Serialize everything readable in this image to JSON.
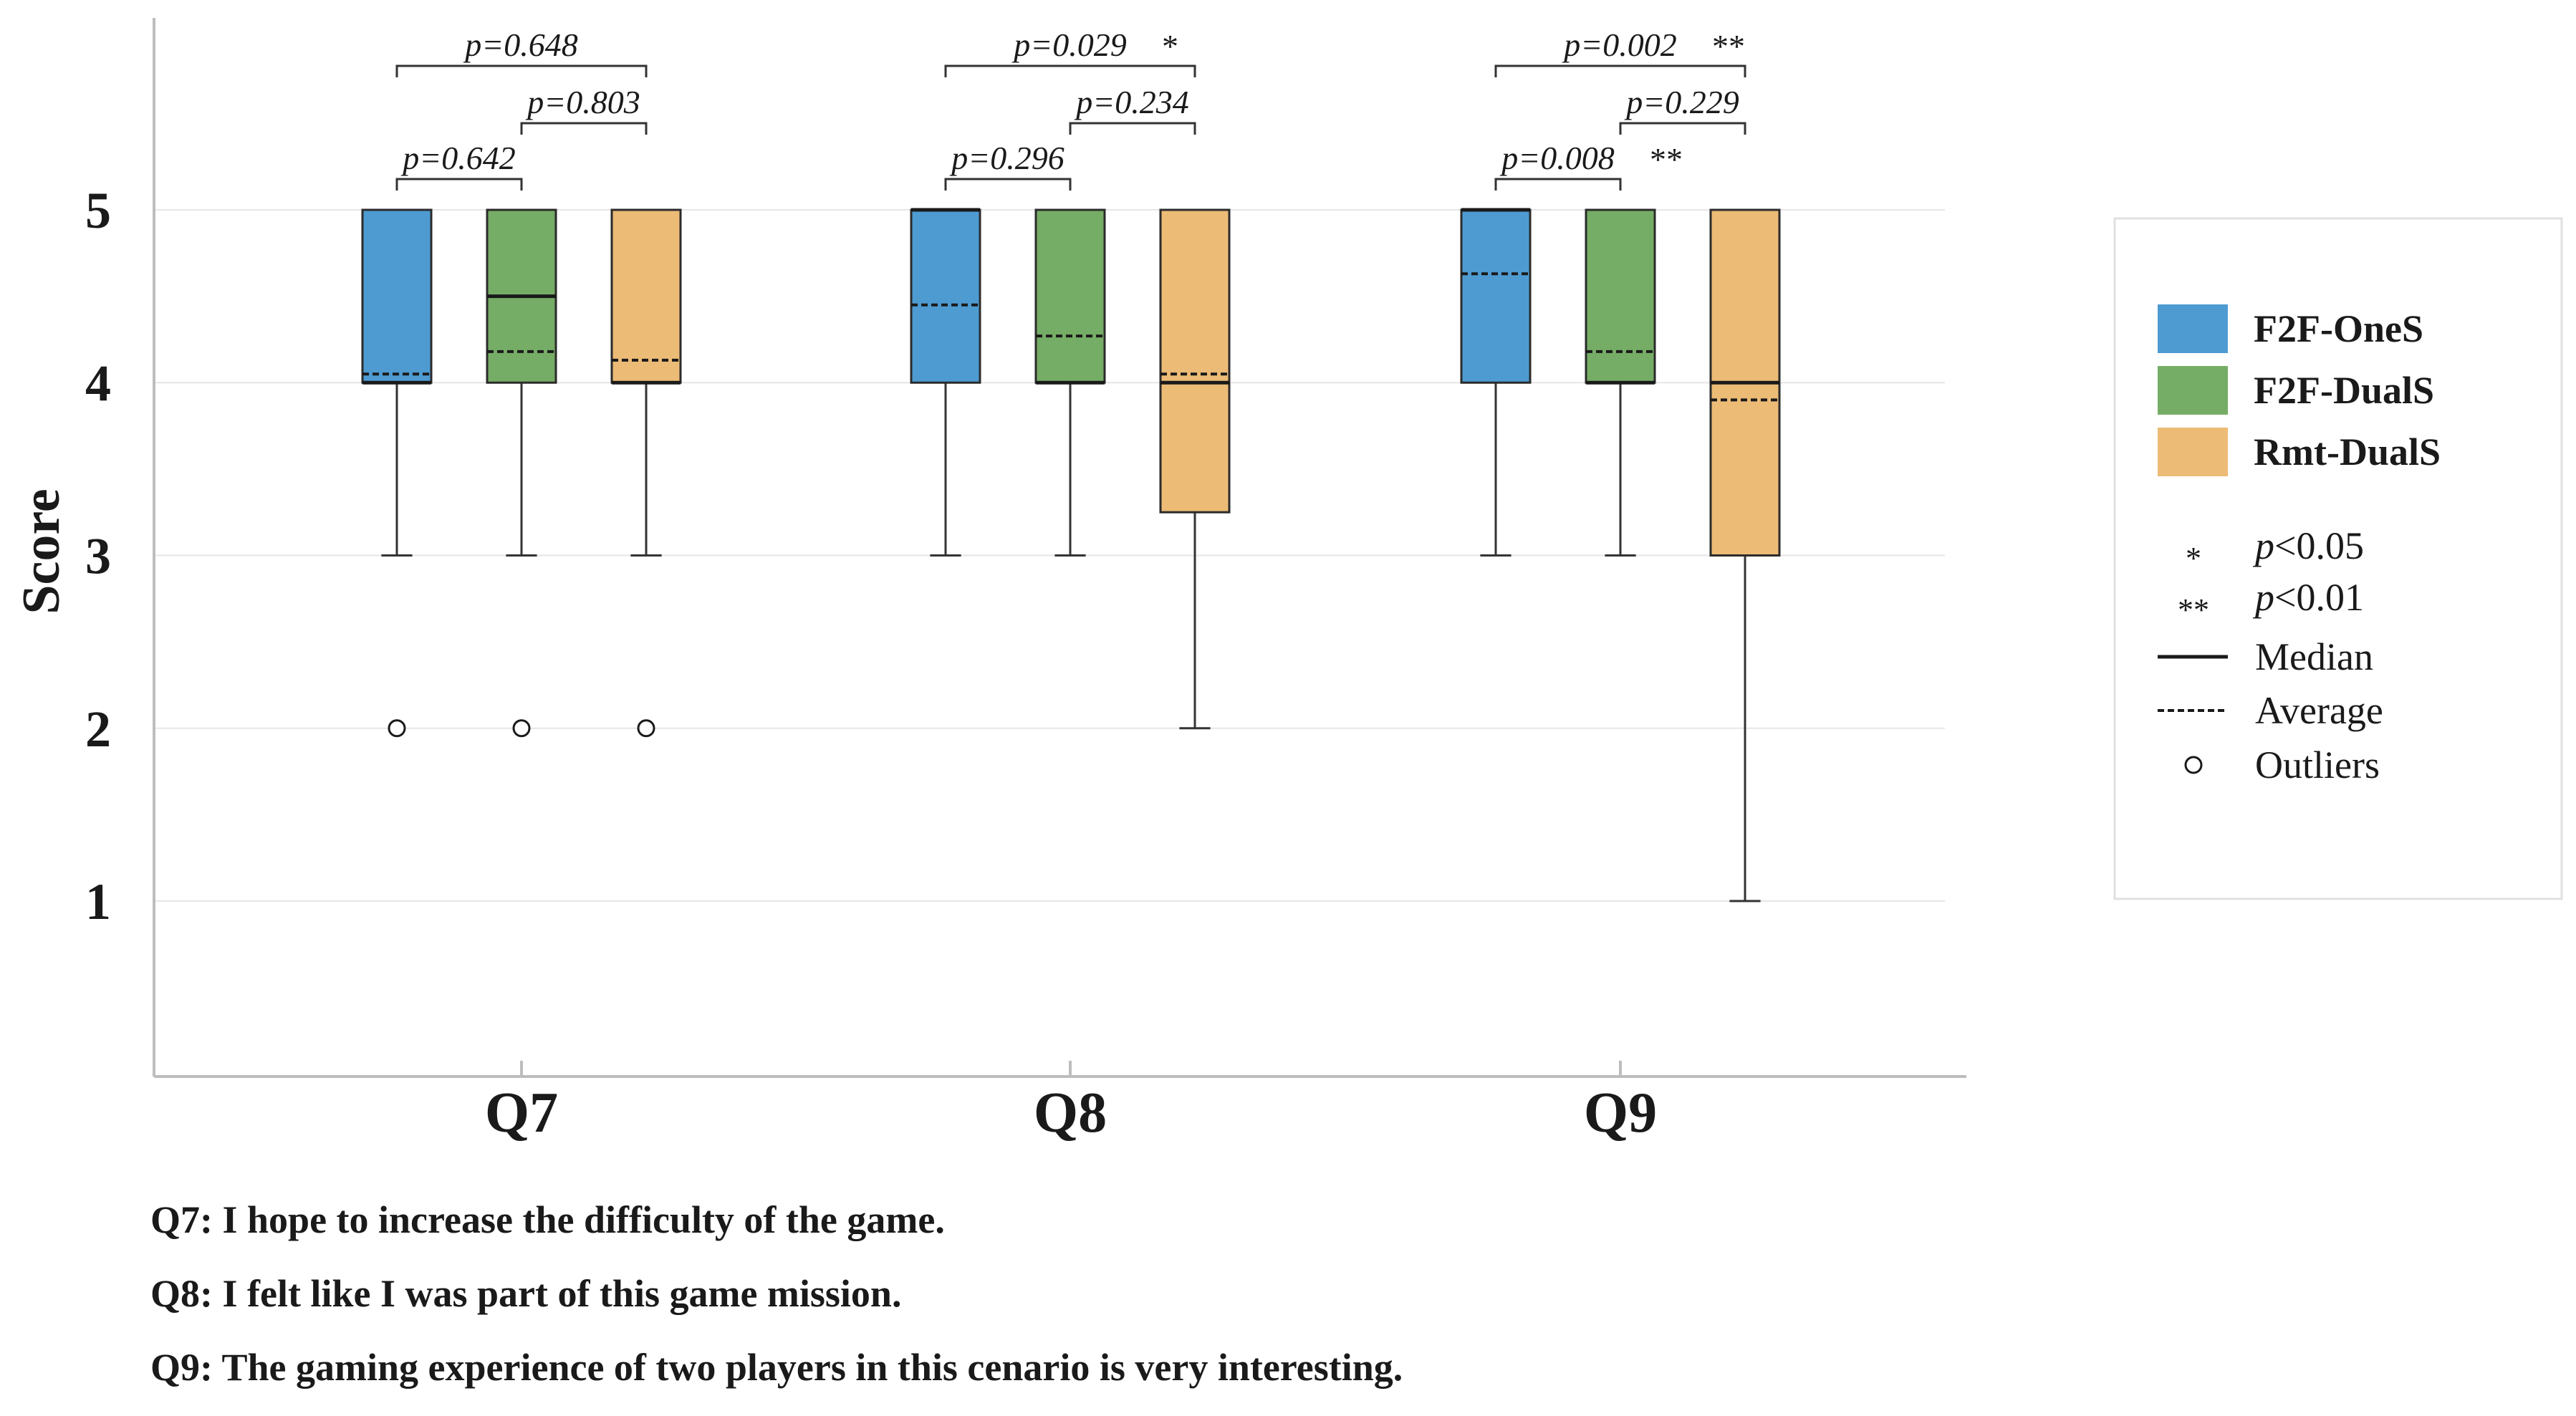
{
  "chart_data": {
    "type": "boxplot",
    "ylabel": "Score",
    "ylim": [
      0,
      6
    ],
    "yticks": [
      1,
      2,
      3,
      4,
      5
    ],
    "grid": true,
    "categories": [
      "Q7",
      "Q8",
      "Q9"
    ],
    "series": [
      {
        "name": "F2F-OneS",
        "color": "#4e9bd2",
        "boxes": [
          {
            "whisker_low": 3,
            "q1": 4,
            "median": 4,
            "q3": 5,
            "whisker_high": 5,
            "mean": 4.05,
            "outliers": [
              2
            ]
          },
          {
            "whisker_low": 3,
            "q1": 4,
            "median": 5,
            "q3": 5,
            "whisker_high": 5,
            "mean": 4.45,
            "outliers": []
          },
          {
            "whisker_low": 3,
            "q1": 4,
            "median": 5,
            "q3": 5,
            "whisker_high": 5,
            "mean": 4.63,
            "outliers": []
          }
        ]
      },
      {
        "name": "F2F-DualS",
        "color": "#76ad66",
        "boxes": [
          {
            "whisker_low": 3,
            "q1": 4,
            "median": 4.5,
            "q3": 5,
            "whisker_high": 5,
            "mean": 4.18,
            "outliers": [
              2
            ]
          },
          {
            "whisker_low": 3,
            "q1": 4,
            "median": 4,
            "q3": 5,
            "whisker_high": 5,
            "mean": 4.27,
            "outliers": []
          },
          {
            "whisker_low": 3,
            "q1": 4,
            "median": 4,
            "q3": 5,
            "whisker_high": 5,
            "mean": 4.18,
            "outliers": []
          }
        ]
      },
      {
        "name": "Rmt-DualS",
        "color": "#ecbb76",
        "boxes": [
          {
            "whisker_low": 3,
            "q1": 4,
            "median": 4,
            "q3": 5,
            "whisker_high": 5,
            "mean": 4.13,
            "outliers": [
              2
            ]
          },
          {
            "whisker_low": 2,
            "q1": 3.25,
            "median": 4,
            "q3": 5,
            "whisker_high": 5,
            "mean": 4.05,
            "outliers": []
          },
          {
            "whisker_low": 1,
            "q1": 3,
            "median": 4,
            "q3": 5,
            "whisker_high": 5,
            "mean": 3.9,
            "outliers": []
          }
        ]
      }
    ],
    "comparisons": [
      {
        "category": "Q7",
        "from": 0,
        "to": 1,
        "level": 1,
        "label": "p=0.642",
        "stars": ""
      },
      {
        "category": "Q7",
        "from": 1,
        "to": 2,
        "level": 2,
        "label": "p=0.803",
        "stars": ""
      },
      {
        "category": "Q7",
        "from": 0,
        "to": 2,
        "level": 3,
        "label": "p=0.648",
        "stars": ""
      },
      {
        "category": "Q8",
        "from": 0,
        "to": 1,
        "level": 1,
        "label": "p=0.296",
        "stars": ""
      },
      {
        "category": "Q8",
        "from": 1,
        "to": 2,
        "level": 2,
        "label": "p=0.234",
        "stars": ""
      },
      {
        "category": "Q8",
        "from": 0,
        "to": 2,
        "level": 3,
        "label": "p=0.029",
        "stars": "*"
      },
      {
        "category": "Q9",
        "from": 0,
        "to": 1,
        "level": 1,
        "label": "p=0.008",
        "stars": "**"
      },
      {
        "category": "Q9",
        "from": 1,
        "to": 2,
        "level": 2,
        "label": "p=0.229",
        "stars": ""
      },
      {
        "category": "Q9",
        "from": 0,
        "to": 2,
        "level": 3,
        "label": "p=0.002",
        "stars": "**"
      }
    ],
    "legend": {
      "placement": "right",
      "series": [
        "F2F-OneS",
        "F2F-DualS",
        "Rmt-DualS"
      ],
      "significance": [
        {
          "symbol": "*",
          "prefix": "p",
          "text": "<0.05"
        },
        {
          "symbol": "**",
          "prefix": "p",
          "text": "<0.01"
        }
      ],
      "median_label": "Median",
      "average_label": "Average",
      "outliers_label": "Outliers"
    },
    "questions": [
      "Q7: I hope to increase the difficulty of the game.",
      "Q8: I felt like I was part of this game mission.",
      "Q9: The gaming experience of two players in this cenario is very interesting."
    ]
  }
}
